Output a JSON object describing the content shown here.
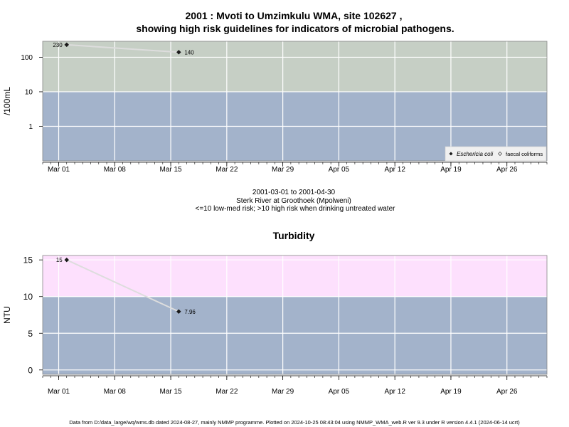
{
  "page": {
    "title_line1": "2001 : Mvoti to Umzimkulu WMA, site 102627 ,",
    "title_line2": "showing high risk guidelines for indicators of microbial pathogens.",
    "footer": "Data from D:/data_large/wq/wms.db dated 2024-08-27, mainly NMMP programme. Plotted on 2024-10-25 08:43:04 using NMMP_WMA_web.R ver 9.3 under R version 4.4.1 (2024-06-14 ucrt)"
  },
  "chart_data": [
    {
      "type": "line",
      "y_scale": "log",
      "ylabel": "/100mL",
      "yticks": [
        "100",
        "10",
        "1"
      ],
      "ytick_values": [
        100,
        10,
        1
      ],
      "ylim": [
        0.1,
        290
      ],
      "xlim": [
        "2001-02-27",
        "2001-05-01"
      ],
      "x_ticks": [
        "Mar 01",
        "Mar 08",
        "Mar 15",
        "Mar 22",
        "Mar 29",
        "Apr 05",
        "Apr 12",
        "Apr 19",
        "Apr 26"
      ],
      "x_tick_dates": [
        "2001-03-01",
        "2001-03-08",
        "2001-03-15",
        "2001-03-22",
        "2001-03-29",
        "2001-04-05",
        "2001-04-12",
        "2001-04-19",
        "2001-04-26"
      ],
      "bands": [
        {
          "from": 0.1,
          "to": 10,
          "color": "#a3b3cb"
        },
        {
          "from": 10,
          "to": 290,
          "color": "#c6cfc5"
        }
      ],
      "series": [
        {
          "name": "Eschericia coli",
          "x": [
            "2001-03-02",
            "2001-03-16"
          ],
          "y": [
            230,
            140
          ],
          "labels": [
            "230",
            "140"
          ],
          "marker": "filled-diamond",
          "color": "#1a1a1a"
        }
      ],
      "legend": {
        "position": "bottom-right",
        "entries": [
          {
            "label": "Eschericia coli",
            "italic": true,
            "marker": "filled-diamond"
          },
          {
            "label": "faecal coliforms",
            "italic": false,
            "marker": "open-diamond"
          }
        ]
      },
      "caption_lines": [
        "2001-03-01 to 2001-04-30",
        "Sterk River at Groothoek (Mpolweni)",
        "<=10 low-med risk; >10 high risk when drinking untreated water"
      ],
      "grid": true,
      "colors": {
        "line": "#dddddd",
        "grid": "#ffffff",
        "frame": "#888888"
      }
    },
    {
      "type": "line",
      "title": "Turbidity",
      "ylabel": "NTU",
      "yticks": [
        "15",
        "10",
        "5",
        "0"
      ],
      "ytick_values": [
        15,
        10,
        5,
        0
      ],
      "ylim": [
        -0.6,
        15.6
      ],
      "xlim": [
        "2001-02-27",
        "2001-05-01"
      ],
      "x_ticks": [
        "Mar 01",
        "Mar 08",
        "Mar 15",
        "Mar 22",
        "Mar 29",
        "Apr 05",
        "Apr 12",
        "Apr 19",
        "Apr 26"
      ],
      "x_tick_dates": [
        "2001-03-01",
        "2001-03-08",
        "2001-03-15",
        "2001-03-22",
        "2001-03-29",
        "2001-04-05",
        "2001-04-12",
        "2001-04-19",
        "2001-04-26"
      ],
      "bands": [
        {
          "from": -0.6,
          "to": 10,
          "color": "#a3b3cb"
        },
        {
          "from": 10,
          "to": 15.6,
          "color": "#fde0fd"
        }
      ],
      "series": [
        {
          "x": [
            "2001-03-02",
            "2001-03-16"
          ],
          "y": [
            15,
            7.96
          ],
          "labels": [
            "15",
            "7.96"
          ],
          "marker": "filled-diamond",
          "color": "#1a1a1a"
        }
      ],
      "grid": true,
      "colors": {
        "line": "#dddddd",
        "grid": "#ffffff",
        "frame": "#888888"
      }
    }
  ]
}
